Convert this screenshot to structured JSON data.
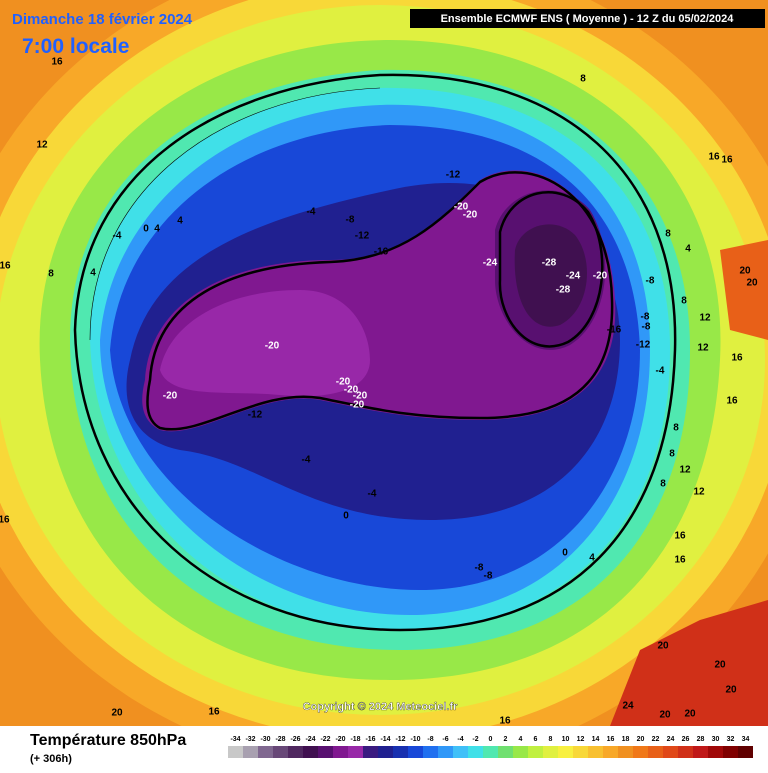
{
  "header": {
    "date": "Dimanche 18 février 2024",
    "time": "7:00 locale",
    "model": "Ensemble ECMWF ENS  ( Moyenne )  -  12 Z du 05/02/2024",
    "copyright": "Copyright © 2024 Meteociel.fr"
  },
  "footer": {
    "parameter": "Température 850hPa",
    "lead": "(+ 306h)"
  },
  "colorbar": {
    "ticks": [
      -34,
      -32,
      -30,
      -28,
      -26,
      -24,
      -22,
      -20,
      -18,
      -16,
      -14,
      -12,
      -10,
      -8,
      -6,
      -4,
      -2,
      0,
      2,
      4,
      6,
      8,
      10,
      12,
      14,
      16,
      18,
      20,
      22,
      24,
      26,
      28,
      30,
      32,
      34
    ],
    "colors": [
      "#c8c8c8",
      "#a8a0b0",
      "#806890",
      "#684878",
      "#502860",
      "#401050",
      "#581070",
      "#801890",
      "#9828a8",
      "#3a1a80",
      "#202090",
      "#1830b0",
      "#1848d8",
      "#2070f0",
      "#3098f8",
      "#40c0f8",
      "#40e0e8",
      "#50e8b0",
      "#70e070",
      "#98e848",
      "#c0f040",
      "#e0f040",
      "#f8f040",
      "#f8d838",
      "#f8c030",
      "#f8a828",
      "#f09020",
      "#f07818",
      "#e86018",
      "#e04818",
      "#d03018",
      "#c01818",
      "#a00808",
      "#800000",
      "#600000"
    ]
  },
  "contour_labels": [
    16,
    12,
    8,
    16,
    16,
    -12,
    -4,
    -8,
    4,
    -20,
    -20,
    -12,
    -16,
    -24,
    -28,
    -24,
    -20,
    -28,
    -8,
    4,
    8,
    -8,
    -8,
    -16,
    -12,
    -4,
    -20,
    -20,
    -20,
    -20,
    -20,
    -20,
    -12,
    -4,
    -4,
    0,
    -8,
    -8,
    4,
    0,
    8,
    12,
    16,
    16,
    16,
    20,
    20,
    20,
    24,
    20,
    20,
    16,
    20,
    16,
    8,
    16,
    4,
    0,
    4,
    -4,
    20,
    20,
    8,
    12,
    12,
    16,
    16,
    8,
    8,
    12
  ]
}
